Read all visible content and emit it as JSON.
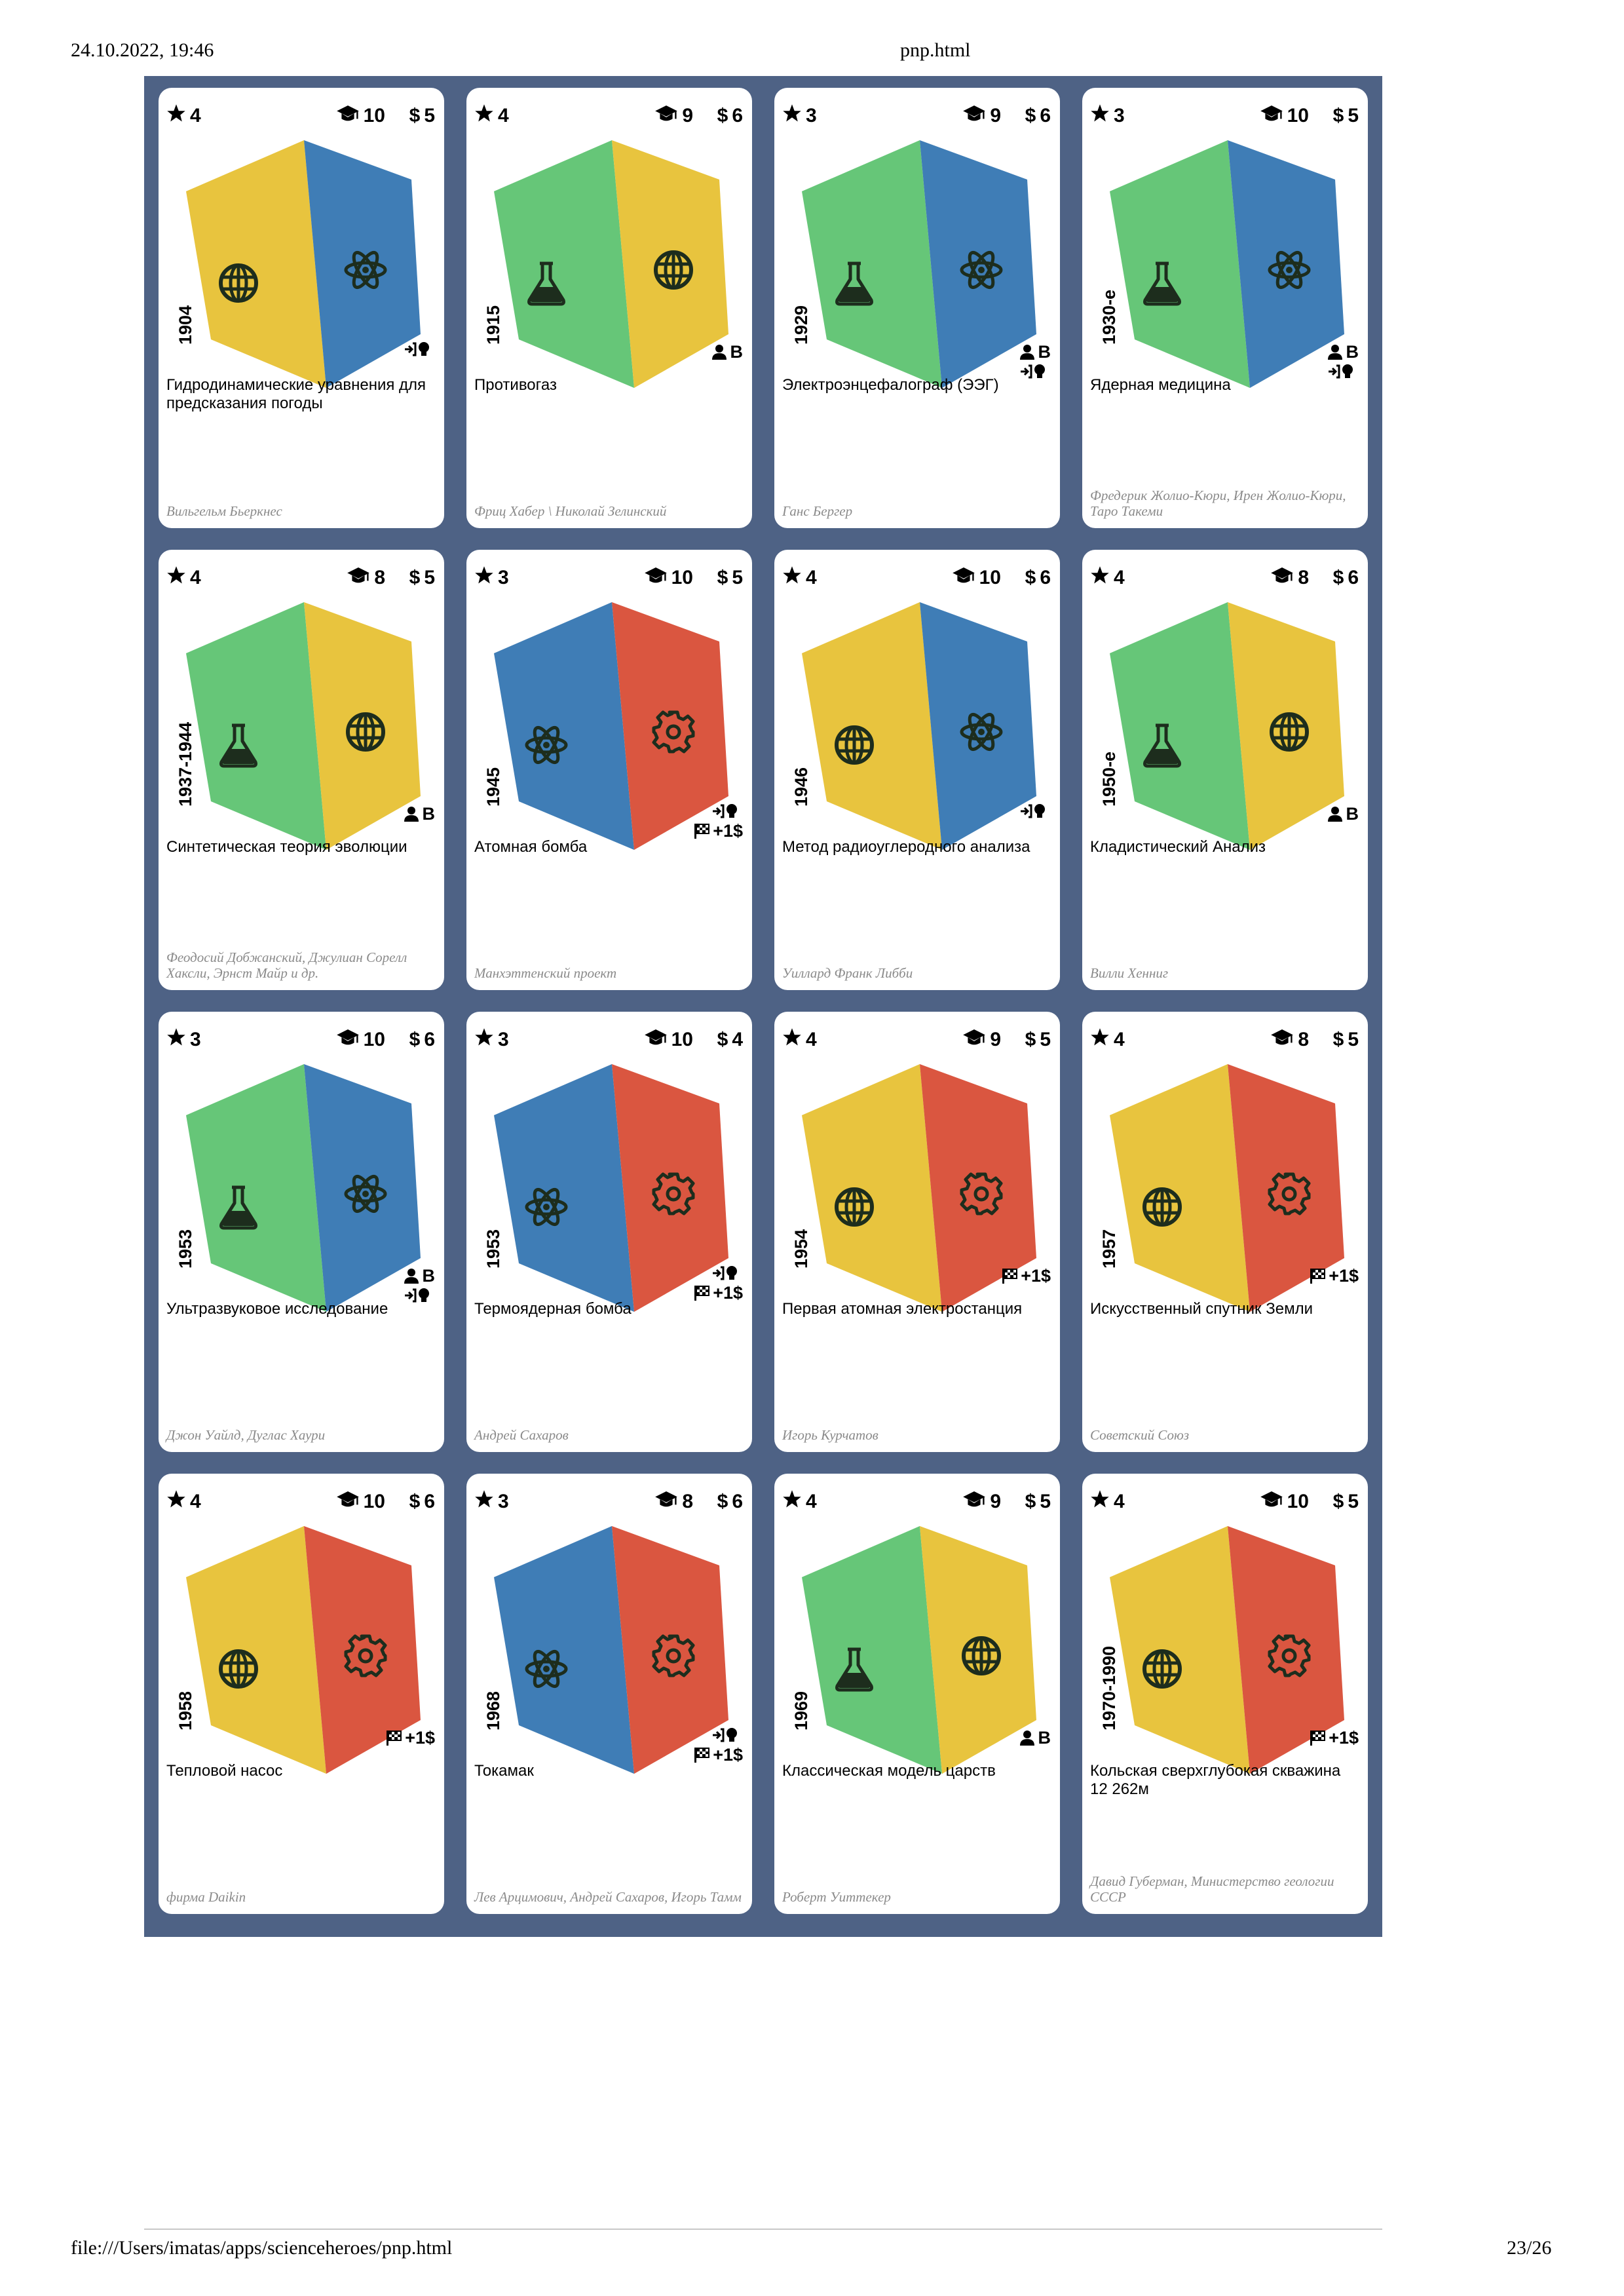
{
  "print_header": {
    "datetime": "24.10.2022, 19:46",
    "title": "pnp.html"
  },
  "print_footer": {
    "path": "file:///Users/imatas/apps/scienceheroes/pnp.html",
    "page": "23/26"
  },
  "colors": {
    "sheet": "#4e6285",
    "yellow": "#e8c43e",
    "blue": "#3f7db6",
    "green": "#66c678",
    "red": "#da5640",
    "icon_dark": "#1d2d1d"
  },
  "cards": [
    {
      "stars": "4",
      "cap": "10",
      "money": "5",
      "left": {
        "color": "yellow",
        "icon": "globe-icon"
      },
      "right": {
        "color": "blue",
        "icon": "atom-icon"
      },
      "year": "1904",
      "effects": [
        "arrow-bulb"
      ],
      "title": "Гидродинамические уравнения для предсказания погоды",
      "author": "Вильгельм Бьеркнес"
    },
    {
      "stars": "4",
      "cap": "9",
      "money": "6",
      "left": {
        "color": "green",
        "icon": "flask-icon"
      },
      "right": {
        "color": "yellow",
        "icon": "globe-icon"
      },
      "year": "1915",
      "effects": [
        "person-b"
      ],
      "title": "Противогаз",
      "author": "Фриц Хабер \\ Николай Зелинский"
    },
    {
      "stars": "3",
      "cap": "9",
      "money": "6",
      "left": {
        "color": "green",
        "icon": "flask-icon"
      },
      "right": {
        "color": "blue",
        "icon": "atom-icon"
      },
      "year": "1929",
      "effects": [
        "person-b",
        "arrow-bulb"
      ],
      "title": "Электроэнцефалограф (ЭЭГ)",
      "author": "Ганс Бергер"
    },
    {
      "stars": "3",
      "cap": "10",
      "money": "5",
      "left": {
        "color": "green",
        "icon": "flask-icon"
      },
      "right": {
        "color": "blue",
        "icon": "atom-icon"
      },
      "year": "1930-е",
      "effects": [
        "person-b",
        "arrow-bulb"
      ],
      "title": "Ядерная медицина",
      "author": "Фредерик Жолио-Кюри, Ирен Жолио-Кюри, Таро Такеми"
    },
    {
      "stars": "4",
      "cap": "8",
      "money": "5",
      "left": {
        "color": "green",
        "icon": "flask-icon"
      },
      "right": {
        "color": "yellow",
        "icon": "globe-icon"
      },
      "year": "1937-1944",
      "effects": [
        "person-b"
      ],
      "title": "Синтетическая теория эволюции",
      "author": "Феодосий Добжанский, Джулиан Сорелл Хаксли, Эрнст Майр и др."
    },
    {
      "stars": "3",
      "cap": "10",
      "money": "5",
      "left": {
        "color": "blue",
        "icon": "atom-icon"
      },
      "right": {
        "color": "red",
        "icon": "gear-icon"
      },
      "year": "1945",
      "effects": [
        "arrow-bulb",
        "flag-money"
      ],
      "title": "Атомная бомба",
      "author": "Манхэттенский проект"
    },
    {
      "stars": "4",
      "cap": "10",
      "money": "6",
      "left": {
        "color": "yellow",
        "icon": "globe-icon"
      },
      "right": {
        "color": "blue",
        "icon": "atom-icon"
      },
      "year": "1946",
      "effects": [
        "arrow-bulb"
      ],
      "title": "Метод радиоуглеродного анализа",
      "author": "Уиллард Франк Либби"
    },
    {
      "stars": "4",
      "cap": "8",
      "money": "6",
      "left": {
        "color": "green",
        "icon": "flask-icon"
      },
      "right": {
        "color": "yellow",
        "icon": "globe-icon"
      },
      "year": "1950-е",
      "effects": [
        "person-b"
      ],
      "title": "Кладистический Анализ",
      "author": "Вилли Хенниг"
    },
    {
      "stars": "3",
      "cap": "10",
      "money": "6",
      "left": {
        "color": "green",
        "icon": "flask-icon"
      },
      "right": {
        "color": "blue",
        "icon": "atom-icon"
      },
      "year": "1953",
      "effects": [
        "person-b",
        "arrow-bulb"
      ],
      "title": "Ультразвуковое исследование",
      "author": "Джон Уайлд, Дуглас Хаури"
    },
    {
      "stars": "3",
      "cap": "10",
      "money": "4",
      "left": {
        "color": "blue",
        "icon": "atom-icon"
      },
      "right": {
        "color": "red",
        "icon": "gear-icon"
      },
      "year": "1953",
      "effects": [
        "arrow-bulb",
        "flag-money"
      ],
      "title": "Термоядерная бомба",
      "author": "Андрей Сахаров"
    },
    {
      "stars": "4",
      "cap": "9",
      "money": "5",
      "left": {
        "color": "yellow",
        "icon": "globe-icon"
      },
      "right": {
        "color": "red",
        "icon": "gear-icon"
      },
      "year": "1954",
      "effects": [
        "flag-money"
      ],
      "title": "Первая атомная электростанция",
      "author": "Игорь Курчатов"
    },
    {
      "stars": "4",
      "cap": "8",
      "money": "5",
      "left": {
        "color": "yellow",
        "icon": "globe-icon"
      },
      "right": {
        "color": "red",
        "icon": "gear-icon"
      },
      "year": "1957",
      "effects": [
        "flag-money"
      ],
      "title": "Искусственный спутник Земли",
      "author": "Советский Союз"
    },
    {
      "stars": "4",
      "cap": "10",
      "money": "6",
      "left": {
        "color": "yellow",
        "icon": "globe-icon"
      },
      "right": {
        "color": "red",
        "icon": "gear-icon"
      },
      "year": "1958",
      "effects": [
        "flag-money"
      ],
      "title": "Тепловой насос",
      "author": "фирма Daikin"
    },
    {
      "stars": "3",
      "cap": "8",
      "money": "6",
      "left": {
        "color": "blue",
        "icon": "atom-icon"
      },
      "right": {
        "color": "red",
        "icon": "gear-icon"
      },
      "year": "1968",
      "effects": [
        "arrow-bulb",
        "flag-money"
      ],
      "title": "Токамак",
      "author": "Лев Арцимович, Андрей Сахаров, Игорь Тамм"
    },
    {
      "stars": "4",
      "cap": "9",
      "money": "5",
      "left": {
        "color": "green",
        "icon": "flask-icon"
      },
      "right": {
        "color": "yellow",
        "icon": "globe-icon"
      },
      "year": "1969",
      "effects": [
        "person-b"
      ],
      "title": "Классическая модель царств",
      "author": "Роберт Уиттекер"
    },
    {
      "stars": "4",
      "cap": "10",
      "money": "5",
      "left": {
        "color": "yellow",
        "icon": "globe-icon"
      },
      "right": {
        "color": "red",
        "icon": "gear-icon"
      },
      "year": "1970-1990",
      "effects": [
        "flag-money"
      ],
      "title": "Кольская сверхглубокая скважина 12 262м",
      "author": "Давид Губерман, Министерство геологии СССР"
    }
  ],
  "effect_labels": {
    "person-b": "B",
    "flag-money": "+1$",
    "arrow-bulb": ""
  },
  "money_symbol": "$"
}
